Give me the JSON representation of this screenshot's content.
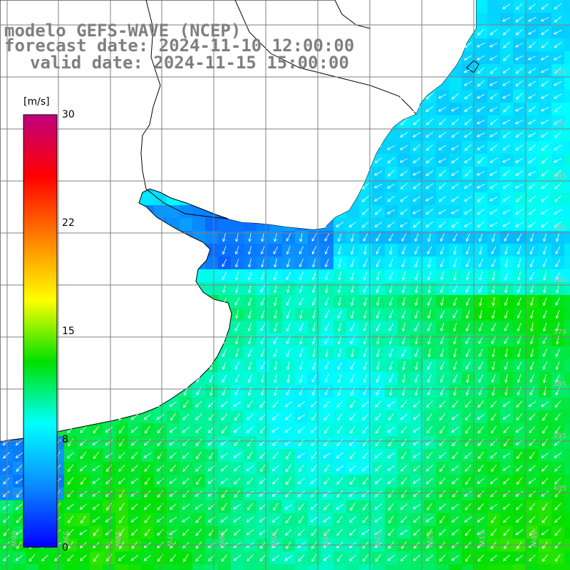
{
  "title": {
    "line1": "modelo GEFS-WAVE (NCEP)",
    "line2": "forecast date: 2024-11-10 12:00:00",
    "line3": "valid date: 2024-11-15 15:00:00"
  },
  "colorbar": {
    "unit": "[m/s]",
    "ticks": [
      "0",
      "8",
      "15",
      "22",
      "30"
    ],
    "min": 0,
    "max": 30,
    "colors": [
      "#0000ff",
      "#0a8cff",
      "#00ffff",
      "#00e000",
      "#ffff00",
      "#ff8000",
      "#ff0000",
      "#c0007f"
    ]
  },
  "map": {
    "land_color": "#ffffff",
    "coast_color": "#000000",
    "grid_color": "#7f7f7f",
    "arrow_color": "#ffffff",
    "latitude_labels": [
      "32S",
      "33S",
      "34S",
      "35S",
      "36S",
      "37S",
      "38S",
      "39S",
      "40S"
    ],
    "longitude_labels": [
      "60W",
      "59W",
      "58W",
      "57W",
      "56W",
      "55W",
      "54W",
      "53W",
      "52W",
      "51W",
      "50W"
    ]
  }
}
